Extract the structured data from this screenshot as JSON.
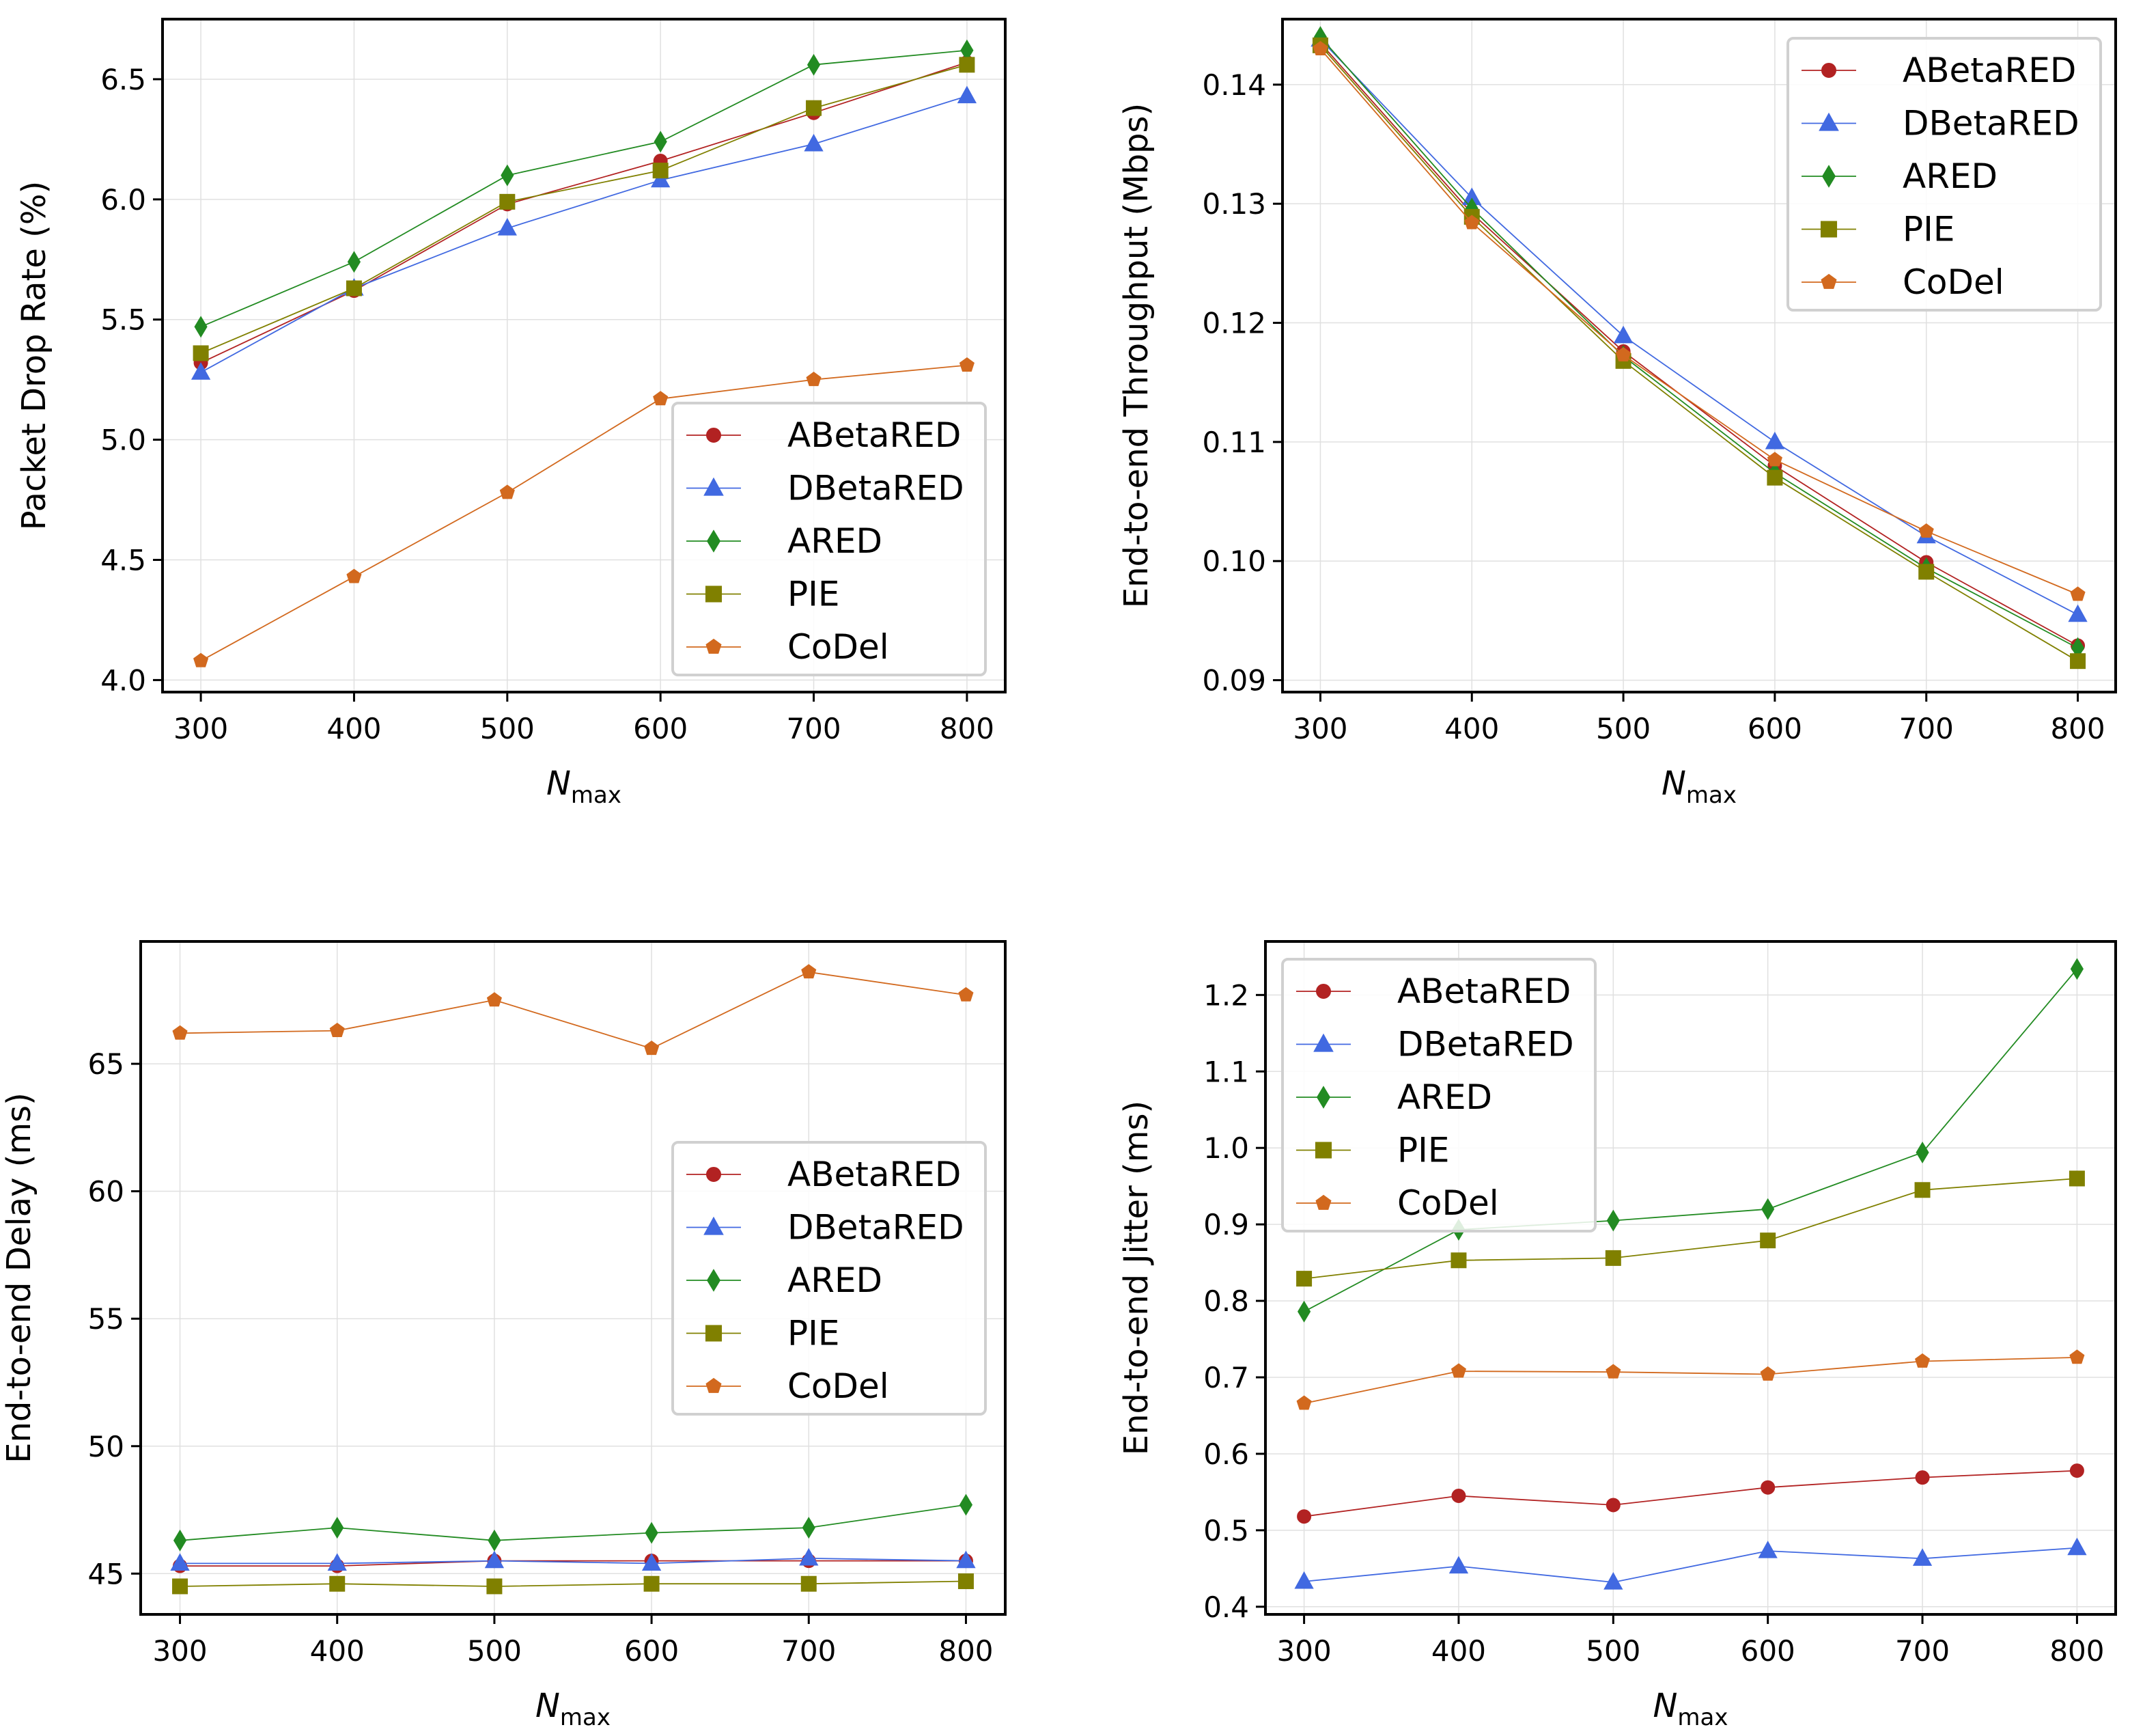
{
  "series_styles": [
    {
      "name": "ABetaRED",
      "color": "#b22222",
      "marker": "circle"
    },
    {
      "name": "DBetaRED",
      "color": "#4169e1",
      "marker": "triangle"
    },
    {
      "name": "ARED",
      "color": "#228b22",
      "marker": "thin_diamond"
    },
    {
      "name": "PIE",
      "color": "#808000",
      "marker": "square"
    },
    {
      "name": "CoDel",
      "color": "#d2691e",
      "marker": "pentagon"
    }
  ],
  "chart_data": [
    {
      "type": "line",
      "xlabel_main": "N",
      "xlabel_sub": "max",
      "ylabel": "Packet Drop Rate (%)",
      "x": [
        300,
        400,
        500,
        600,
        700,
        800
      ],
      "xticks": [
        "300",
        "400",
        "500",
        "600",
        "700",
        "800"
      ],
      "xlim": [
        275,
        825
      ],
      "ylim": [
        3.95,
        6.75
      ],
      "yticks": [
        "4.0",
        "4.5",
        "5.0",
        "5.5",
        "6.0",
        "6.5"
      ],
      "ytick_values": [
        4.0,
        4.5,
        5.0,
        5.5,
        6.0,
        6.5
      ],
      "legend_position": "lower-right",
      "series": [
        {
          "name": "ABetaRED",
          "values": [
            5.32,
            5.62,
            5.98,
            6.16,
            6.36,
            6.57
          ]
        },
        {
          "name": "DBetaRED",
          "values": [
            5.28,
            5.63,
            5.88,
            6.08,
            6.23,
            6.43
          ]
        },
        {
          "name": "ARED",
          "values": [
            5.47,
            5.74,
            6.1,
            6.24,
            6.56,
            6.62
          ]
        },
        {
          "name": "PIE",
          "values": [
            5.36,
            5.63,
            5.99,
            6.12,
            6.38,
            6.56
          ]
        },
        {
          "name": "CoDel",
          "values": [
            4.08,
            4.43,
            4.78,
            5.17,
            5.25,
            5.31
          ]
        }
      ]
    },
    {
      "type": "line",
      "xlabel_main": "N",
      "xlabel_sub": "max",
      "ylabel": "End-to-end Throughput (Mbps)",
      "x": [
        300,
        400,
        500,
        600,
        700,
        800
      ],
      "xticks": [
        "300",
        "400",
        "500",
        "600",
        "700",
        "800"
      ],
      "xlim": [
        275,
        825
      ],
      "ylim": [
        0.089,
        0.1455
      ],
      "yticks": [
        "0.09",
        "0.10",
        "0.11",
        "0.12",
        "0.13",
        "0.14"
      ],
      "ytick_values": [
        0.09,
        0.1,
        0.11,
        0.12,
        0.13,
        0.14
      ],
      "legend_position": "top-right",
      "series": [
        {
          "name": "ABetaRED",
          "values": [
            0.1435,
            0.1292,
            0.1176,
            0.108,
            0.0999,
            0.0929
          ]
        },
        {
          "name": "DBetaRED",
          "values": [
            0.1438,
            0.1305,
            0.1189,
            0.11,
            0.1021,
            0.0955
          ]
        },
        {
          "name": "ARED",
          "values": [
            0.144,
            0.1296,
            0.1172,
            0.1074,
            0.0994,
            0.0927
          ]
        },
        {
          "name": "PIE",
          "values": [
            0.1433,
            0.1289,
            0.1168,
            0.107,
            0.0991,
            0.0916
          ]
        },
        {
          "name": "CoDel",
          "values": [
            0.143,
            0.1284,
            0.1173,
            0.1085,
            0.1025,
            0.0972
          ]
        }
      ]
    },
    {
      "type": "line",
      "xlabel_main": "N",
      "xlabel_sub": "max",
      "ylabel": "End-to-end Delay (ms)",
      "x": [
        300,
        400,
        500,
        600,
        700,
        800
      ],
      "xticks": [
        "300",
        "400",
        "500",
        "600",
        "700",
        "800"
      ],
      "xlim": [
        275,
        825
      ],
      "ylim": [
        43.4,
        69.8
      ],
      "yticks": [
        "45",
        "50",
        "55",
        "60",
        "65"
      ],
      "ytick_values": [
        45,
        50,
        55,
        60,
        65
      ],
      "legend_position": "center-right",
      "series": [
        {
          "name": "ABetaRED",
          "values": [
            45.3,
            45.3,
            45.5,
            45.5,
            45.5,
            45.5
          ]
        },
        {
          "name": "DBetaRED",
          "values": [
            45.4,
            45.4,
            45.5,
            45.4,
            45.6,
            45.5
          ]
        },
        {
          "name": "ARED",
          "values": [
            46.3,
            46.8,
            46.3,
            46.6,
            46.8,
            47.7
          ]
        },
        {
          "name": "PIE",
          "values": [
            44.5,
            44.6,
            44.5,
            44.6,
            44.6,
            44.7
          ]
        },
        {
          "name": "CoDel",
          "values": [
            66.2,
            66.3,
            67.5,
            65.6,
            68.6,
            67.7
          ]
        }
      ]
    },
    {
      "type": "line",
      "xlabel_main": "N",
      "xlabel_sub": "max",
      "ylabel": "End-to-end Jitter (ms)",
      "x": [
        300,
        400,
        500,
        600,
        700,
        800
      ],
      "xticks": [
        "300",
        "400",
        "500",
        "600",
        "700",
        "800"
      ],
      "xlim": [
        275,
        825
      ],
      "ylim": [
        0.39,
        1.27
      ],
      "yticks": [
        "0.4",
        "0.5",
        "0.6",
        "0.7",
        "0.8",
        "0.9",
        "1.0",
        "1.1",
        "1.2"
      ],
      "ytick_values": [
        0.4,
        0.5,
        0.6,
        0.7,
        0.8,
        0.9,
        1.0,
        1.1,
        1.2
      ],
      "legend_position": "top-left",
      "series": [
        {
          "name": "ABetaRED",
          "values": [
            0.518,
            0.545,
            0.533,
            0.556,
            0.569,
            0.578
          ]
        },
        {
          "name": "DBetaRED",
          "values": [
            0.433,
            0.453,
            0.432,
            0.473,
            0.463,
            0.477
          ]
        },
        {
          "name": "ARED",
          "values": [
            0.786,
            0.893,
            0.905,
            0.92,
            0.994,
            1.234
          ]
        },
        {
          "name": "PIE",
          "values": [
            0.829,
            0.853,
            0.856,
            0.879,
            0.945,
            0.96
          ]
        },
        {
          "name": "CoDel",
          "values": [
            0.666,
            0.708,
            0.707,
            0.704,
            0.721,
            0.726
          ]
        }
      ]
    }
  ]
}
